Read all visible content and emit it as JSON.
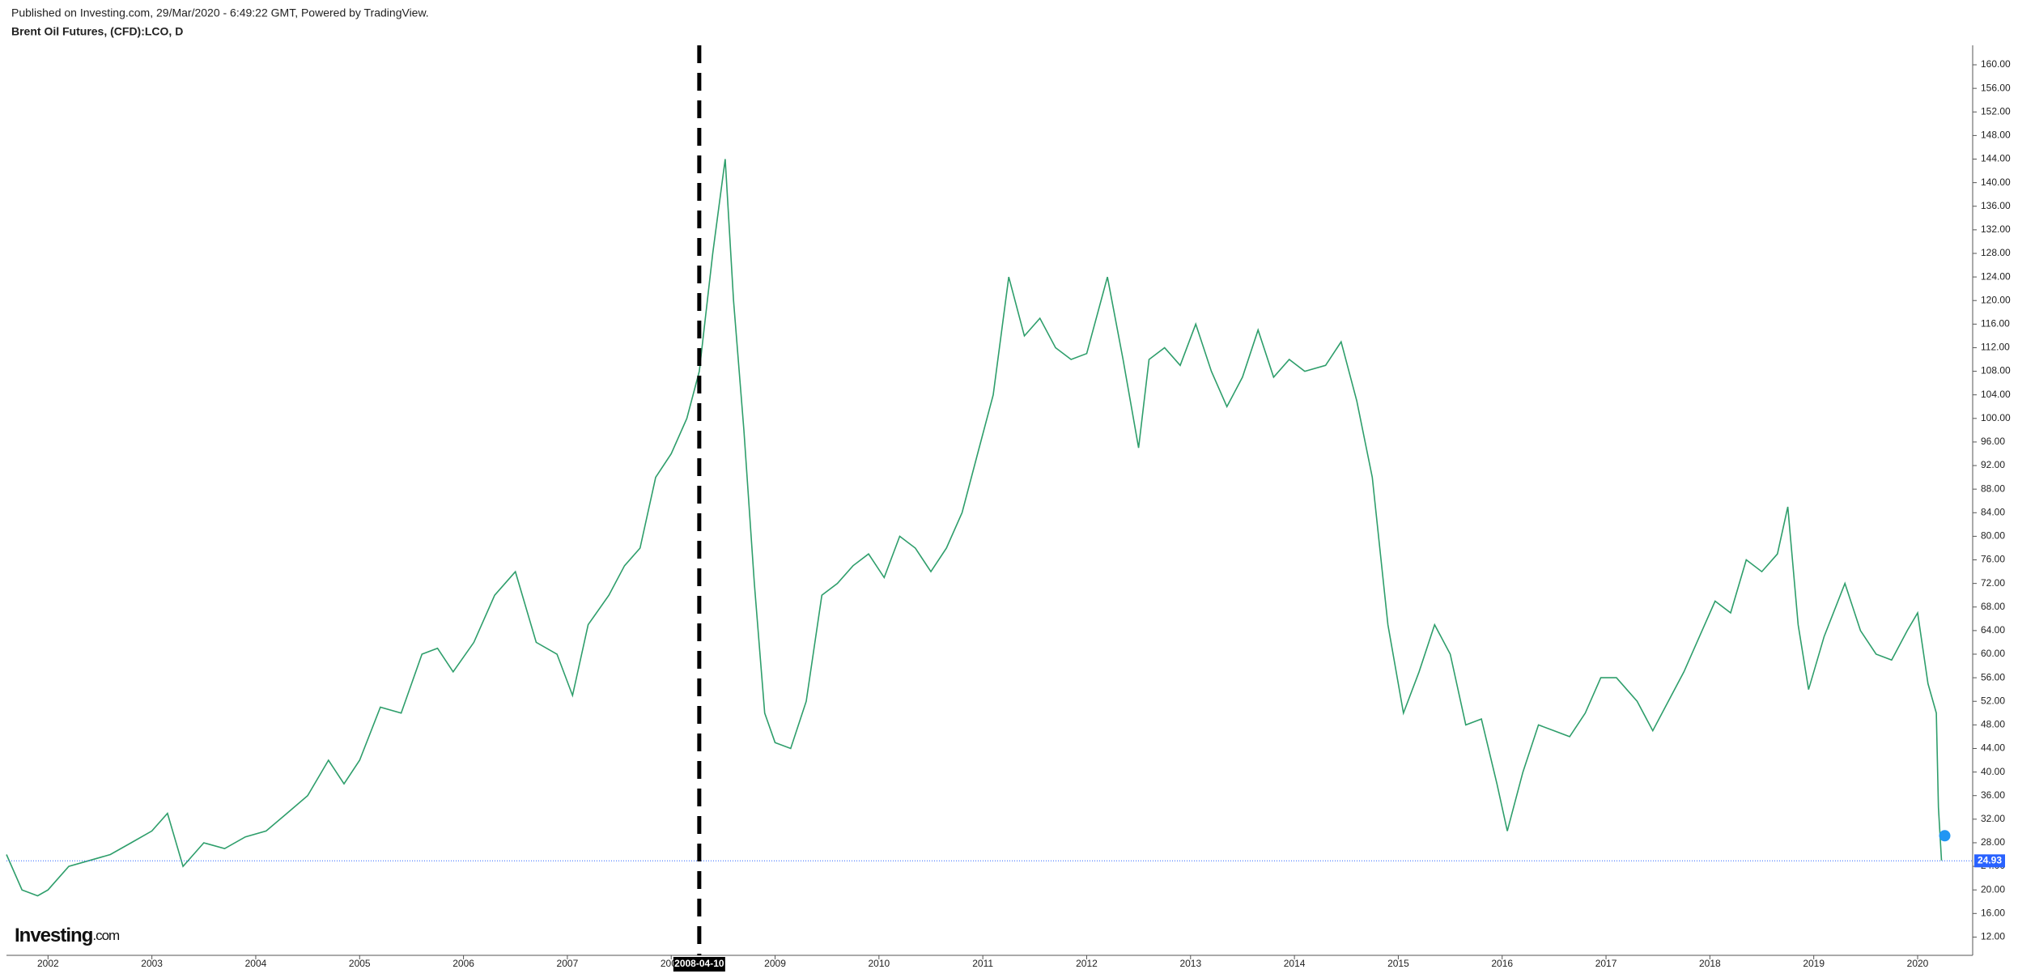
{
  "header": {
    "published": "Published on Investing.com, 29/Mar/2020 - 6:49:22 GMT, Powered by TradingView.",
    "symbol": "Brent Oil Futures, (CFD):LCO, D",
    "logo": "Investing",
    "logo_suffix": ".com"
  },
  "chart_data": {
    "type": "line",
    "color": "#2e9e6b",
    "x": [
      2001.6,
      2001.75,
      2001.9,
      2002.0,
      2002.2,
      2002.4,
      2002.6,
      2002.8,
      2003.0,
      2003.15,
      2003.3,
      2003.5,
      2003.7,
      2003.9,
      2004.1,
      2004.3,
      2004.5,
      2004.7,
      2004.85,
      2005.0,
      2005.2,
      2005.4,
      2005.6,
      2005.75,
      2005.9,
      2006.1,
      2006.3,
      2006.5,
      2006.7,
      2006.9,
      2007.05,
      2007.2,
      2007.4,
      2007.55,
      2007.7,
      2007.85,
      2008.0,
      2008.15,
      2008.27,
      2008.4,
      2008.52,
      2008.6,
      2008.7,
      2008.8,
      2008.9,
      2009.0,
      2009.15,
      2009.3,
      2009.45,
      2009.6,
      2009.75,
      2009.9,
      2010.05,
      2010.2,
      2010.35,
      2010.5,
      2010.65,
      2010.8,
      2010.95,
      2011.1,
      2011.25,
      2011.4,
      2011.55,
      2011.7,
      2011.85,
      2012.0,
      2012.2,
      2012.35,
      2012.5,
      2012.6,
      2012.75,
      2012.9,
      2013.05,
      2013.2,
      2013.35,
      2013.5,
      2013.65,
      2013.8,
      2013.95,
      2014.1,
      2014.3,
      2014.45,
      2014.6,
      2014.75,
      2014.9,
      2015.05,
      2015.2,
      2015.35,
      2015.5,
      2015.65,
      2015.8,
      2015.95,
      2016.05,
      2016.2,
      2016.35,
      2016.5,
      2016.65,
      2016.8,
      2016.95,
      2017.1,
      2017.3,
      2017.45,
      2017.6,
      2017.75,
      2017.9,
      2018.05,
      2018.2,
      2018.35,
      2018.5,
      2018.65,
      2018.75,
      2018.85,
      2018.95,
      2019.1,
      2019.3,
      2019.45,
      2019.6,
      2019.75,
      2019.9,
      2020.0,
      2020.1,
      2020.18,
      2020.2,
      2020.23
    ],
    "values": [
      26,
      20,
      19,
      20,
      24,
      25,
      26,
      28,
      30,
      33,
      24,
      28,
      27,
      29,
      30,
      33,
      36,
      42,
      38,
      42,
      51,
      50,
      60,
      61,
      57,
      62,
      70,
      74,
      62,
      60,
      53,
      65,
      70,
      75,
      78,
      90,
      94,
      100,
      108,
      128,
      144,
      120,
      98,
      72,
      50,
      45,
      44,
      52,
      70,
      72,
      75,
      77,
      73,
      80,
      78,
      74,
      78,
      84,
      94,
      104,
      124,
      114,
      117,
      112,
      110,
      111,
      124,
      110,
      95,
      110,
      112,
      109,
      116,
      108,
      102,
      107,
      115,
      107,
      110,
      108,
      109,
      113,
      103,
      90,
      65,
      50,
      57,
      65,
      60,
      48,
      49,
      38,
      30,
      40,
      48,
      47,
      46,
      50,
      56,
      56,
      52,
      47,
      52,
      57,
      63,
      69,
      67,
      76,
      74,
      77,
      85,
      65,
      54,
      63,
      72,
      64,
      60,
      59,
      64,
      67,
      55,
      50,
      34,
      25
    ],
    "xlim": [
      2001.6,
      2020.53
    ],
    "xticks": [
      2002,
      2003,
      2004,
      2005,
      2006,
      2007,
      2008,
      2009,
      2010,
      2011,
      2012,
      2013,
      2014,
      2015,
      2016,
      2017,
      2018,
      2019,
      2020
    ],
    "ylim": [
      8.9,
      163.3
    ],
    "yticks": [
      {
        "value": 12,
        "label": "12.00"
      },
      {
        "value": 16,
        "label": "16.00"
      },
      {
        "value": 20,
        "label": "20.00"
      },
      {
        "value": 24,
        "label": "24.00"
      },
      {
        "value": 28,
        "label": "28.00"
      },
      {
        "value": 32,
        "label": "32.00"
      },
      {
        "value": 36,
        "label": "36.00"
      },
      {
        "value": 40,
        "label": "40.00"
      },
      {
        "value": 44,
        "label": "44.00"
      },
      {
        "value": 48,
        "label": "48.00"
      },
      {
        "value": 52,
        "label": "52.00"
      },
      {
        "value": 56,
        "label": "56.00"
      },
      {
        "value": 60,
        "label": "60.00"
      },
      {
        "value": 64,
        "label": "64.00"
      },
      {
        "value": 68,
        "label": "68.00"
      },
      {
        "value": 72,
        "label": "72.00"
      },
      {
        "value": 76,
        "label": "76.00"
      },
      {
        "value": 80,
        "label": "80.00"
      },
      {
        "value": 84,
        "label": "84.00"
      },
      {
        "value": 88,
        "label": "88.00"
      },
      {
        "value": 92,
        "label": "92.00"
      },
      {
        "value": 96,
        "label": "96.00"
      },
      {
        "value": 100,
        "label": "100.00"
      },
      {
        "value": 104,
        "label": "104.00"
      },
      {
        "value": 108,
        "label": "108.00"
      },
      {
        "value": 112,
        "label": "112.00"
      },
      {
        "value": 116,
        "label": "116.00"
      },
      {
        "value": 120,
        "label": "120.00"
      },
      {
        "value": 124,
        "label": "124.00"
      },
      {
        "value": 128,
        "label": "128.00"
      },
      {
        "value": 132,
        "label": "132.00"
      },
      {
        "value": 136,
        "label": "136.00"
      },
      {
        "value": 140,
        "label": "140.00"
      },
      {
        "value": 144,
        "label": "144.00"
      },
      {
        "value": 148,
        "label": "148.00"
      },
      {
        "value": 152,
        "label": "152.00"
      },
      {
        "value": 156,
        "label": "156.00"
      },
      {
        "value": 160,
        "label": "160.00"
      }
    ],
    "last_price": 24.93,
    "price_color": "#2962ff",
    "marker": {
      "x": 2008.27,
      "label": "2008-04-10"
    }
  }
}
